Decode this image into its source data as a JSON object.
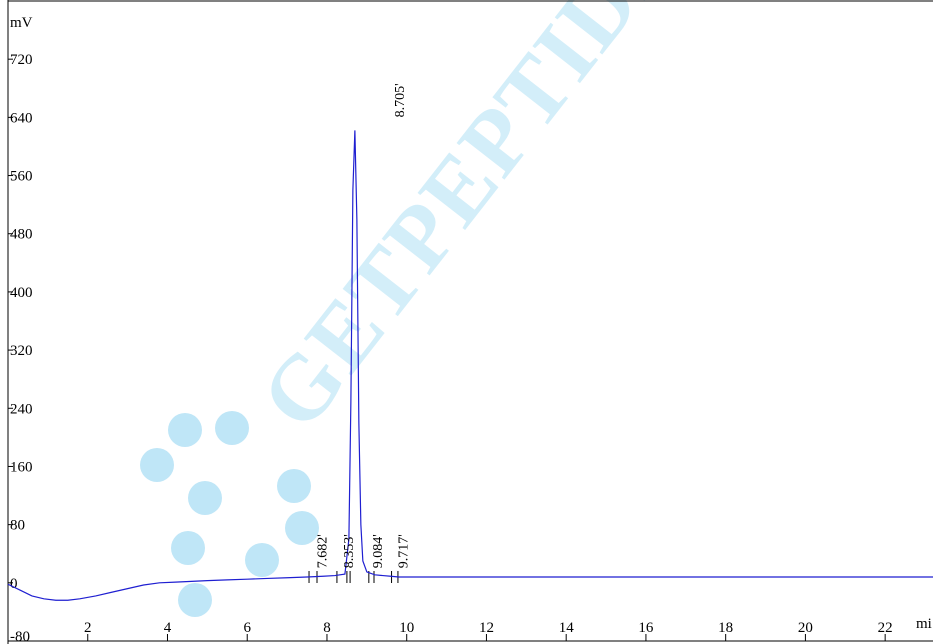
{
  "colors": {
    "trace": "#1f1fd1",
    "axis": "#000000",
    "watermark": "#d3eef9",
    "watermark_logo": "#bfe6f7"
  },
  "watermark": {
    "text": "GETPEPTIDES.",
    "logo_icon": "molecule-bubbles-icon"
  },
  "chart_data": {
    "type": "line",
    "title": "",
    "xlabel": "",
    "ylabel": "",
    "y_unit": "mV",
    "x_unit": "mi",
    "xlim": [
      0,
      23.2
    ],
    "ylim": [
      -80,
      800
    ],
    "x_ticks": [
      2,
      4,
      6,
      8,
      10,
      12,
      14,
      16,
      18,
      20,
      22
    ],
    "y_ticks": [
      -80,
      0,
      80,
      160,
      240,
      320,
      400,
      480,
      560,
      640,
      720
    ],
    "grid": false,
    "series": [
      {
        "x": [
          0.0,
          0.3,
          0.6,
          0.9,
          1.2,
          1.5,
          1.8,
          2.2,
          2.6,
          3.0,
          3.4,
          3.8,
          4.2,
          4.6,
          5.0,
          5.5,
          6.0,
          6.5,
          7.0,
          7.5,
          7.9,
          8.2,
          8.45,
          8.55,
          8.6,
          8.65,
          8.7,
          8.75,
          8.8,
          8.85,
          8.9,
          9.0,
          9.2,
          9.4,
          9.6,
          9.8,
          10.0,
          11.0,
          12.0,
          14.0,
          16.0,
          18.0,
          20.0,
          22.0,
          23.2
        ],
        "y": [
          -2,
          -10,
          -18,
          -22,
          -24,
          -24,
          -22,
          -18,
          -13,
          -8,
          -3,
          0,
          1,
          2,
          3,
          4,
          5,
          6,
          7,
          8,
          9,
          10,
          12,
          60,
          250,
          540,
          622,
          500,
          220,
          80,
          30,
          15,
          11,
          10,
          9,
          8,
          8,
          8,
          8,
          8,
          8,
          8,
          8,
          8,
          8
        ]
      }
    ],
    "peaks": [
      {
        "label": "7.682'",
        "x": 7.682
      },
      {
        "label": "8.353'",
        "x": 8.353
      },
      {
        "label": "8.705'",
        "x": 8.705
      },
      {
        "label": "9.084'",
        "x": 9.084
      },
      {
        "label": "9.717'",
        "x": 9.717
      }
    ],
    "integration_marks_x": [
      7.55,
      7.75,
      8.25,
      8.5,
      8.58,
      9.05,
      9.18,
      9.62,
      9.78
    ]
  }
}
